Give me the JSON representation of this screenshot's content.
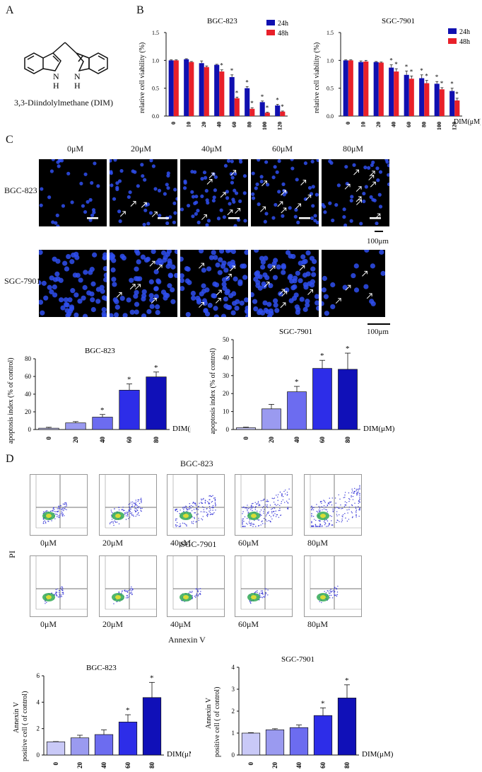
{
  "panels": {
    "a": "A",
    "b": "B",
    "c": "C",
    "d": "D"
  },
  "molecule": {
    "name": "3,3-Diindolylmethane (DIM)",
    "nh_left": "N",
    "h_left": "H",
    "nh_right": "N",
    "h_right": "H"
  },
  "xunit": "DIM(μM)",
  "colors": {
    "h24": "#1010b0",
    "h48": "#e8202a",
    "grad": [
      "#c9c9f7",
      "#9a9af0",
      "#6c6cf0",
      "#2d2de8",
      "#1010b8"
    ]
  },
  "viability": {
    "ylabel": "relative cell viability (%)",
    "legend": [
      "24h",
      "48h"
    ],
    "charts": [
      {
        "title": "BGC-823",
        "categories": [
          "0",
          "10",
          "20",
          "40",
          "60",
          "80",
          "100",
          "120"
        ],
        "h24": [
          1.0,
          1.02,
          0.95,
          0.92,
          0.7,
          0.5,
          0.25,
          0.19
        ],
        "h48": [
          1.0,
          0.97,
          0.88,
          0.8,
          0.32,
          0.13,
          0.06,
          0.08
        ],
        "err24": [
          0.01,
          0.01,
          0.04,
          0.01,
          0.04,
          0.03,
          0.02,
          0.02
        ],
        "err48": [
          0.01,
          0.01,
          0.02,
          0.03,
          0.02,
          0.02,
          0.01,
          0.01
        ],
        "ylim": [
          0,
          1.5
        ],
        "ticks": [
          "0.0",
          "0.5",
          "1.0",
          "1.5"
        ]
      },
      {
        "title": "SGC-7901",
        "categories": [
          "0",
          "10",
          "20",
          "40",
          "60",
          "80",
          "100",
          "120"
        ],
        "h24": [
          1.0,
          0.97,
          0.97,
          0.87,
          0.74,
          0.68,
          0.58,
          0.45
        ],
        "h48": [
          1.0,
          0.98,
          0.96,
          0.8,
          0.67,
          0.59,
          0.48,
          0.28
        ],
        "err24": [
          0.01,
          0.02,
          0.01,
          0.05,
          0.07,
          0.06,
          0.04,
          0.05
        ],
        "err48": [
          0.01,
          0.02,
          0.01,
          0.05,
          0.05,
          0.05,
          0.03,
          0.04
        ],
        "ylim": [
          0,
          1.5
        ],
        "ticks": [
          "0.0",
          "0.5",
          "1.0",
          "1.5"
        ]
      }
    ]
  },
  "micro": {
    "doses": [
      "0μM",
      "20μM",
      "40μM",
      "60μM",
      "80μM"
    ],
    "rows": [
      "BGC-823",
      "SGC-7901"
    ],
    "scale": "100μm"
  },
  "chart_data": [
    {
      "type": "bar",
      "title": "BGC-823",
      "ylabel": "relative cell viability (%)",
      "xlabel": "DIM(μM)",
      "categories": [
        "0",
        "10",
        "20",
        "40",
        "60",
        "80",
        "100",
        "120"
      ],
      "series": [
        {
          "name": "24h",
          "values": [
            1.0,
            1.02,
            0.95,
            0.92,
            0.7,
            0.5,
            0.25,
            0.19
          ]
        },
        {
          "name": "48h",
          "values": [
            1.0,
            0.97,
            0.88,
            0.8,
            0.32,
            0.13,
            0.06,
            0.08
          ]
        }
      ],
      "ylim": [
        0,
        1.5
      ]
    },
    {
      "type": "bar",
      "title": "SGC-7901",
      "ylabel": "relative cell viability (%)",
      "xlabel": "DIM(μM)",
      "categories": [
        "0",
        "10",
        "20",
        "40",
        "60",
        "80",
        "100",
        "120"
      ],
      "series": [
        {
          "name": "24h",
          "values": [
            1.0,
            0.97,
            0.97,
            0.87,
            0.74,
            0.68,
            0.58,
            0.45
          ]
        },
        {
          "name": "48h",
          "values": [
            1.0,
            0.98,
            0.96,
            0.8,
            0.67,
            0.59,
            0.48,
            0.28
          ]
        }
      ],
      "ylim": [
        0,
        1.5
      ]
    },
    {
      "type": "bar",
      "title": "BGC-823",
      "ylabel": "apoptosis index (% of control)",
      "xlabel": "DIM(μM)",
      "categories": [
        "0",
        "20",
        "40",
        "60",
        "80"
      ],
      "values": [
        1.5,
        7.5,
        14,
        44.5,
        59.5
      ],
      "errors": [
        1,
        1.5,
        3,
        7,
        5.5
      ],
      "sig": [
        false,
        false,
        true,
        true,
        true
      ],
      "ylim": [
        0,
        80
      ],
      "ticks": [
        "0",
        "20",
        "40",
        "60",
        "80"
      ]
    },
    {
      "type": "bar",
      "title": "SGC-7901",
      "ylabel": "apoptosis index (% of control)",
      "xlabel": "DIM(μM)",
      "categories": [
        "0",
        "20",
        "40",
        "60",
        "80"
      ],
      "values": [
        1,
        11.5,
        21,
        34,
        33.5
      ],
      "errors": [
        0.3,
        2.5,
        3,
        4.5,
        9
      ],
      "sig": [
        false,
        false,
        true,
        true,
        true
      ],
      "ylim": [
        0,
        50
      ],
      "ticks": [
        "0",
        "10",
        "20",
        "30",
        "40",
        "50"
      ]
    },
    {
      "type": "bar",
      "title": "BGC-823",
      "ylabel": "Annexin V positive cell ( of control)",
      "xlabel": "DIM(μM)",
      "categories": [
        "0",
        "20",
        "40",
        "60",
        "80"
      ],
      "values": [
        1.0,
        1.3,
        1.55,
        2.5,
        4.35
      ],
      "errors": [
        0.02,
        0.2,
        0.35,
        0.55,
        1.15
      ],
      "sig": [
        false,
        false,
        false,
        true,
        true
      ],
      "ylim": [
        0,
        6
      ],
      "ticks": [
        "0",
        "2",
        "4",
        "6"
      ]
    },
    {
      "type": "bar",
      "title": "SGC-7901",
      "ylabel": "Annexin V positive cell ( of control)",
      "xlabel": "DIM(μM)",
      "categories": [
        "0",
        "20",
        "40",
        "60",
        "80"
      ],
      "values": [
        1.0,
        1.15,
        1.25,
        1.8,
        2.6
      ],
      "errors": [
        0.02,
        0.05,
        0.12,
        0.35,
        0.6
      ],
      "sig": [
        false,
        false,
        false,
        true,
        true
      ],
      "ylim": [
        0,
        4
      ],
      "ticks": [
        "0",
        "1",
        "2",
        "3",
        "4"
      ]
    }
  ],
  "flow": {
    "rows": [
      "BGC-823",
      "SGC-7901"
    ],
    "doses": [
      "0μM",
      "20μM",
      "40μM",
      "60μM",
      "80μM"
    ],
    "yaxis": "PI",
    "xaxis": "Annexin V"
  }
}
